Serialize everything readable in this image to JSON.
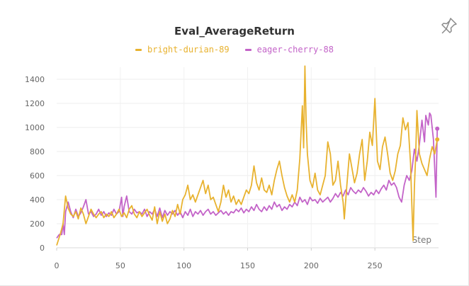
{
  "panel": {
    "title": "Eval_AverageReturn",
    "pin_icon": "pin-icon"
  },
  "chart_data": {
    "type": "line",
    "title": "Eval_AverageReturn",
    "xlabel": "Step",
    "ylabel": "",
    "xlim": [
      0,
      300
    ],
    "ylim": [
      0,
      1500
    ],
    "x_ticks": [
      0,
      50,
      100,
      150,
      200,
      250
    ],
    "y_ticks": [
      0,
      200,
      400,
      600,
      800,
      1000,
      1200,
      1400
    ],
    "grid": true,
    "legend_position": "top-center",
    "series": [
      {
        "name": "bright-durian-89",
        "color": "#e8b22f",
        "points": [
          [
            0,
            20
          ],
          [
            3,
            120
          ],
          [
            5,
            200
          ],
          [
            7,
            430
          ],
          [
            9,
            330
          ],
          [
            11,
            280
          ],
          [
            13,
            260
          ],
          [
            15,
            300
          ],
          [
            17,
            240
          ],
          [
            19,
            330
          ],
          [
            21,
            280
          ],
          [
            23,
            200
          ],
          [
            25,
            260
          ],
          [
            27,
            320
          ],
          [
            29,
            280
          ],
          [
            31,
            250
          ],
          [
            33,
            280
          ],
          [
            35,
            300
          ],
          [
            37,
            250
          ],
          [
            39,
            280
          ],
          [
            41,
            260
          ],
          [
            43,
            300
          ],
          [
            45,
            250
          ],
          [
            47,
            280
          ],
          [
            49,
            320
          ],
          [
            51,
            260
          ],
          [
            53,
            290
          ],
          [
            55,
            250
          ],
          [
            57,
            320
          ],
          [
            59,
            350
          ],
          [
            61,
            280
          ],
          [
            63,
            250
          ],
          [
            65,
            300
          ],
          [
            67,
            260
          ],
          [
            69,
            290
          ],
          [
            71,
            320
          ],
          [
            73,
            270
          ],
          [
            75,
            230
          ],
          [
            77,
            340
          ],
          [
            79,
            200
          ],
          [
            81,
            300
          ],
          [
            83,
            220
          ],
          [
            85,
            280
          ],
          [
            87,
            200
          ],
          [
            89,
            240
          ],
          [
            91,
            310
          ],
          [
            93,
            260
          ],
          [
            95,
            360
          ],
          [
            97,
            280
          ],
          [
            99,
            400
          ],
          [
            101,
            440
          ],
          [
            103,
            520
          ],
          [
            105,
            400
          ],
          [
            107,
            440
          ],
          [
            109,
            380
          ],
          [
            111,
            440
          ],
          [
            113,
            500
          ],
          [
            115,
            560
          ],
          [
            117,
            450
          ],
          [
            119,
            520
          ],
          [
            121,
            400
          ],
          [
            123,
            420
          ],
          [
            125,
            360
          ],
          [
            127,
            300
          ],
          [
            129,
            380
          ],
          [
            131,
            520
          ],
          [
            133,
            420
          ],
          [
            135,
            480
          ],
          [
            137,
            380
          ],
          [
            139,
            430
          ],
          [
            141,
            360
          ],
          [
            143,
            400
          ],
          [
            145,
            360
          ],
          [
            147,
            420
          ],
          [
            149,
            480
          ],
          [
            151,
            450
          ],
          [
            153,
            520
          ],
          [
            155,
            680
          ],
          [
            157,
            540
          ],
          [
            159,
            480
          ],
          [
            161,
            580
          ],
          [
            163,
            480
          ],
          [
            165,
            460
          ],
          [
            167,
            520
          ],
          [
            169,
            440
          ],
          [
            171,
            560
          ],
          [
            173,
            650
          ],
          [
            175,
            720
          ],
          [
            177,
            600
          ],
          [
            179,
            500
          ],
          [
            181,
            430
          ],
          [
            183,
            380
          ],
          [
            185,
            440
          ],
          [
            187,
            380
          ],
          [
            189,
            480
          ],
          [
            191,
            740
          ],
          [
            193,
            1180
          ],
          [
            194,
            830
          ],
          [
            195,
            1510
          ],
          [
            196,
            1050
          ],
          [
            197,
            780
          ],
          [
            199,
            560
          ],
          [
            201,
            500
          ],
          [
            203,
            620
          ],
          [
            205,
            480
          ],
          [
            207,
            440
          ],
          [
            209,
            520
          ],
          [
            211,
            600
          ],
          [
            213,
            880
          ],
          [
            215,
            780
          ],
          [
            217,
            520
          ],
          [
            219,
            560
          ],
          [
            221,
            720
          ],
          [
            223,
            520
          ],
          [
            225,
            380
          ],
          [
            226,
            240
          ],
          [
            228,
            520
          ],
          [
            230,
            780
          ],
          [
            232,
            660
          ],
          [
            234,
            540
          ],
          [
            236,
            620
          ],
          [
            238,
            780
          ],
          [
            240,
            900
          ],
          [
            242,
            560
          ],
          [
            244,
            720
          ],
          [
            246,
            960
          ],
          [
            248,
            850
          ],
          [
            250,
            1240
          ],
          [
            252,
            720
          ],
          [
            254,
            650
          ],
          [
            256,
            840
          ],
          [
            258,
            920
          ],
          [
            260,
            780
          ],
          [
            262,
            620
          ],
          [
            264,
            560
          ],
          [
            266,
            640
          ],
          [
            268,
            780
          ],
          [
            270,
            850
          ],
          [
            272,
            1080
          ],
          [
            274,
            980
          ],
          [
            276,
            1040
          ],
          [
            278,
            700
          ],
          [
            279,
            360
          ],
          [
            280,
            60
          ],
          [
            281,
            500
          ],
          [
            282,
            760
          ],
          [
            283,
            1140
          ],
          [
            285,
            780
          ],
          [
            287,
            700
          ],
          [
            289,
            650
          ],
          [
            291,
            600
          ],
          [
            293,
            740
          ],
          [
            295,
            840
          ],
          [
            297,
            780
          ],
          [
            299,
            900
          ]
        ]
      },
      {
        "name": "eager-cherry-88",
        "color": "#c363c8",
        "points": [
          [
            0,
            80
          ],
          [
            2,
            110
          ],
          [
            4,
            110
          ],
          [
            5,
            200
          ],
          [
            6,
            110
          ],
          [
            7,
            300
          ],
          [
            9,
            380
          ],
          [
            11,
            300
          ],
          [
            13,
            250
          ],
          [
            15,
            320
          ],
          [
            17,
            260
          ],
          [
            19,
            290
          ],
          [
            21,
            340
          ],
          [
            23,
            400
          ],
          [
            25,
            280
          ],
          [
            27,
            300
          ],
          [
            29,
            260
          ],
          [
            31,
            280
          ],
          [
            33,
            320
          ],
          [
            35,
            270
          ],
          [
            37,
            300
          ],
          [
            39,
            260
          ],
          [
            41,
            290
          ],
          [
            43,
            270
          ],
          [
            45,
            320
          ],
          [
            47,
            280
          ],
          [
            49,
            300
          ],
          [
            51,
            420
          ],
          [
            52,
            260
          ],
          [
            53,
            340
          ],
          [
            55,
            430
          ],
          [
            57,
            300
          ],
          [
            59,
            280
          ],
          [
            61,
            320
          ],
          [
            63,
            290
          ],
          [
            65,
            300
          ],
          [
            67,
            280
          ],
          [
            69,
            320
          ],
          [
            71,
            260
          ],
          [
            73,
            300
          ],
          [
            75,
            280
          ],
          [
            77,
            320
          ],
          [
            79,
            260
          ],
          [
            81,
            330
          ],
          [
            83,
            250
          ],
          [
            85,
            310
          ],
          [
            87,
            270
          ],
          [
            89,
            300
          ],
          [
            91,
            280
          ],
          [
            93,
            310
          ],
          [
            95,
            270
          ],
          [
            97,
            300
          ],
          [
            99,
            250
          ],
          [
            101,
            300
          ],
          [
            103,
            270
          ],
          [
            105,
            320
          ],
          [
            107,
            260
          ],
          [
            109,
            300
          ],
          [
            111,
            280
          ],
          [
            113,
            310
          ],
          [
            115,
            270
          ],
          [
            117,
            300
          ],
          [
            119,
            320
          ],
          [
            121,
            280
          ],
          [
            123,
            300
          ],
          [
            125,
            270
          ],
          [
            127,
            290
          ],
          [
            129,
            310
          ],
          [
            131,
            280
          ],
          [
            133,
            300
          ],
          [
            135,
            270
          ],
          [
            137,
            300
          ],
          [
            139,
            290
          ],
          [
            141,
            320
          ],
          [
            143,
            300
          ],
          [
            145,
            330
          ],
          [
            147,
            290
          ],
          [
            149,
            320
          ],
          [
            151,
            300
          ],
          [
            153,
            340
          ],
          [
            155,
            310
          ],
          [
            157,
            360
          ],
          [
            159,
            320
          ],
          [
            161,
            300
          ],
          [
            163,
            340
          ],
          [
            165,
            310
          ],
          [
            167,
            350
          ],
          [
            169,
            320
          ],
          [
            171,
            380
          ],
          [
            173,
            340
          ],
          [
            175,
            360
          ],
          [
            177,
            310
          ],
          [
            179,
            340
          ],
          [
            181,
            320
          ],
          [
            183,
            360
          ],
          [
            185,
            340
          ],
          [
            187,
            380
          ],
          [
            189,
            350
          ],
          [
            191,
            420
          ],
          [
            193,
            380
          ],
          [
            195,
            400
          ],
          [
            197,
            360
          ],
          [
            199,
            420
          ],
          [
            201,
            390
          ],
          [
            203,
            400
          ],
          [
            205,
            370
          ],
          [
            207,
            410
          ],
          [
            209,
            380
          ],
          [
            211,
            400
          ],
          [
            213,
            420
          ],
          [
            215,
            380
          ],
          [
            217,
            410
          ],
          [
            219,
            450
          ],
          [
            221,
            420
          ],
          [
            223,
            460
          ],
          [
            225,
            430
          ],
          [
            227,
            480
          ],
          [
            229,
            440
          ],
          [
            231,
            500
          ],
          [
            233,
            470
          ],
          [
            235,
            450
          ],
          [
            237,
            480
          ],
          [
            239,
            460
          ],
          [
            241,
            500
          ],
          [
            243,
            470
          ],
          [
            245,
            430
          ],
          [
            247,
            460
          ],
          [
            249,
            440
          ],
          [
            251,
            480
          ],
          [
            253,
            450
          ],
          [
            255,
            490
          ],
          [
            257,
            520
          ],
          [
            259,
            480
          ],
          [
            261,
            560
          ],
          [
            263,
            520
          ],
          [
            265,
            540
          ],
          [
            267,
            500
          ],
          [
            269,
            420
          ],
          [
            271,
            380
          ],
          [
            273,
            520
          ],
          [
            275,
            600
          ],
          [
            277,
            560
          ],
          [
            279,
            640
          ],
          [
            281,
            820
          ],
          [
            283,
            720
          ],
          [
            285,
            860
          ],
          [
            287,
            1060
          ],
          [
            289,
            880
          ],
          [
            290,
            1100
          ],
          [
            292,
            1020
          ],
          [
            293,
            1120
          ],
          [
            294,
            1100
          ],
          [
            296,
            900
          ],
          [
            298,
            420
          ],
          [
            299,
            990
          ]
        ]
      }
    ]
  }
}
